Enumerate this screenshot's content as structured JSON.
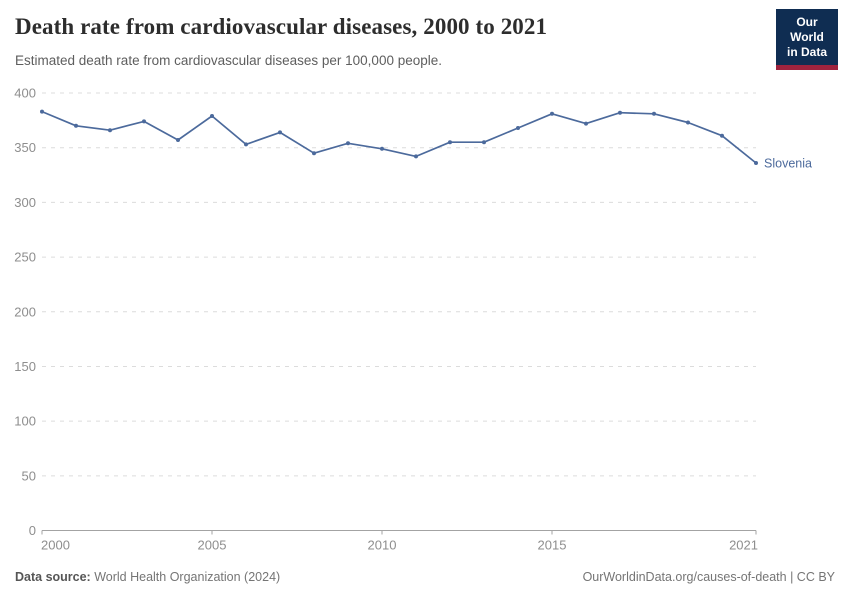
{
  "header": {
    "title": "Death rate from cardiovascular diseases, 2000 to 2021",
    "subtitle": "Estimated death rate from cardiovascular diseases per 100,000 people.",
    "logo": {
      "line1": "Our World",
      "line2": "in Data"
    }
  },
  "chart_data": {
    "type": "line",
    "title": "Death rate from cardiovascular diseases, 2000 to 2021",
    "x": [
      2000,
      2001,
      2002,
      2003,
      2004,
      2005,
      2006,
      2007,
      2008,
      2009,
      2010,
      2011,
      2012,
      2013,
      2014,
      2015,
      2016,
      2017,
      2018,
      2019,
      2020,
      2021
    ],
    "series": [
      {
        "name": "Slovenia",
        "color": "#4c6a9c",
        "values": [
          383,
          370,
          366,
          374,
          357,
          379,
          353,
          364,
          345,
          354,
          349,
          342,
          355,
          355,
          368,
          381,
          372,
          382,
          381,
          373,
          361,
          336
        ]
      }
    ],
    "xlabel": "",
    "ylabel": "",
    "ylim": [
      0,
      400
    ],
    "yticks": [
      0,
      50,
      100,
      150,
      200,
      250,
      300,
      350,
      400
    ],
    "xticks": [
      2000,
      2005,
      2010,
      2015,
      2021
    ],
    "grid": true,
    "legend_position": "right-end-of-line"
  },
  "footer": {
    "source_label": "Data source:",
    "source_text": " World Health Organization (2024)",
    "credit": "OurWorldinData.org/causes-of-death | CC BY"
  },
  "colors": {
    "series_blue": "#4c6a9c",
    "logo_navy": "#0f2d52",
    "logo_red": "#9e233e",
    "gridline": "#dcdcdc",
    "axis": "#a3a3a3",
    "tick_label": "#8e8e8e"
  }
}
